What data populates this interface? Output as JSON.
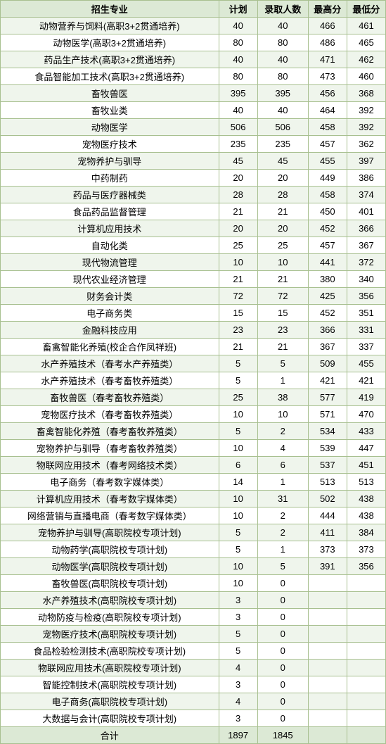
{
  "headers": [
    "招生专业",
    "计划",
    "录取人数",
    "最高分",
    "最低分"
  ],
  "rows": [
    [
      "动物营养与饲料(高职3+2贯通培养)",
      "40",
      "40",
      "466",
      "461"
    ],
    [
      "动物医学(高职3+2贯通培养)",
      "80",
      "80",
      "486",
      "465"
    ],
    [
      "药品生产技术(高职3+2贯通培养)",
      "40",
      "40",
      "471",
      "462"
    ],
    [
      "食品智能加工技术(高职3+2贯通培养)",
      "80",
      "80",
      "473",
      "460"
    ],
    [
      "畜牧兽医",
      "395",
      "395",
      "456",
      "368"
    ],
    [
      "畜牧业类",
      "40",
      "40",
      "464",
      "392"
    ],
    [
      "动物医学",
      "506",
      "506",
      "458",
      "392"
    ],
    [
      "宠物医疗技术",
      "235",
      "235",
      "457",
      "362"
    ],
    [
      "宠物养护与驯导",
      "45",
      "45",
      "455",
      "397"
    ],
    [
      "中药制药",
      "20",
      "20",
      "449",
      "386"
    ],
    [
      "药品与医疗器械类",
      "28",
      "28",
      "458",
      "374"
    ],
    [
      "食品药品监督管理",
      "21",
      "21",
      "450",
      "401"
    ],
    [
      "计算机应用技术",
      "20",
      "20",
      "452",
      "366"
    ],
    [
      "自动化类",
      "25",
      "25",
      "457",
      "367"
    ],
    [
      "现代物流管理",
      "10",
      "10",
      "441",
      "372"
    ],
    [
      "现代农业经济管理",
      "21",
      "21",
      "380",
      "340"
    ],
    [
      "财务会计类",
      "72",
      "72",
      "425",
      "356"
    ],
    [
      "电子商务类",
      "15",
      "15",
      "452",
      "351"
    ],
    [
      "金融科技应用",
      "23",
      "23",
      "366",
      "331"
    ],
    [
      "畜禽智能化养殖(校企合作凤祥班)",
      "21",
      "21",
      "367",
      "337"
    ],
    [
      "水产养殖技术（春考水产养殖类）",
      "5",
      "5",
      "509",
      "455"
    ],
    [
      "水产养殖技术（春考畜牧养殖类）",
      "5",
      "1",
      "421",
      "421"
    ],
    [
      "畜牧兽医（春考畜牧养殖类）",
      "25",
      "38",
      "577",
      "419"
    ],
    [
      "宠物医疗技术（春考畜牧养殖类）",
      "10",
      "10",
      "571",
      "470"
    ],
    [
      "畜禽智能化养殖（春考畜牧养殖类）",
      "5",
      "2",
      "534",
      "433"
    ],
    [
      "宠物养护与驯导（春考畜牧养殖类）",
      "10",
      "4",
      "539",
      "447"
    ],
    [
      "物联网应用技术（春考网络技术类）",
      "6",
      "6",
      "537",
      "451"
    ],
    [
      "电子商务（春考数字媒体类）",
      "14",
      "1",
      "513",
      "513"
    ],
    [
      "计算机应用技术（春考数字媒体类）",
      "10",
      "31",
      "502",
      "438"
    ],
    [
      "网络营销与直播电商（春考数字媒体类）",
      "10",
      "2",
      "444",
      "438"
    ],
    [
      "宠物养护与驯导(高职院校专项计划)",
      "5",
      "2",
      "411",
      "384"
    ],
    [
      "动物药学(高职院校专项计划)",
      "5",
      "1",
      "373",
      "373"
    ],
    [
      "动物医学(高职院校专项计划)",
      "10",
      "5",
      "391",
      "356"
    ],
    [
      "畜牧兽医(高职院校专项计划)",
      "10",
      "0",
      "",
      ""
    ],
    [
      "水产养殖技术(高职院校专项计划)",
      "3",
      "0",
      "",
      ""
    ],
    [
      "动物防疫与检疫(高职院校专项计划)",
      "3",
      "0",
      "",
      ""
    ],
    [
      "宠物医疗技术(高职院校专项计划)",
      "5",
      "0",
      "",
      ""
    ],
    [
      "食品检验检测技术(高职院校专项计划)",
      "5",
      "0",
      "",
      ""
    ],
    [
      "物联网应用技术(高职院校专项计划)",
      "4",
      "0",
      "",
      ""
    ],
    [
      "智能控制技术(高职院校专项计划)",
      "3",
      "0",
      "",
      ""
    ],
    [
      "电子商务(高职院校专项计划)",
      "4",
      "0",
      "",
      ""
    ],
    [
      "大数据与会计(高职院校专项计划)",
      "3",
      "0",
      "",
      ""
    ],
    [
      "合计",
      "1897",
      "1845",
      "",
      ""
    ]
  ]
}
